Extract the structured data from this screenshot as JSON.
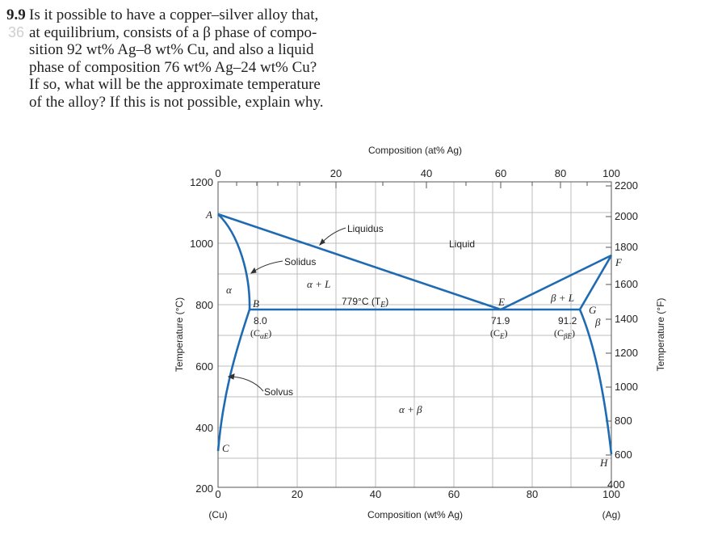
{
  "problem": {
    "number": "9.9",
    "ghost_text": "36",
    "lines": [
      "Is it possible to have a copper–silver alloy that,",
      "at equilibrium, consists of a β phase of compo-",
      "sition 92 wt% Ag–8 wt% Cu, and also a liquid",
      "phase of composition 76 wt% Ag–24 wt% Cu?",
      "If so, what will be the approximate temperature",
      "of the alloy? If this is not possible, explain why."
    ]
  },
  "diagram": {
    "top_axis_title": "Composition (at% Ag)",
    "bottom_axis_title": "Composition (wt% Ag)",
    "left_axis_title": "Temperature (°C)",
    "right_axis_title": "Temperature (°F)",
    "cu_label": "(Cu)",
    "ag_label": "(Ag)",
    "top_ticks": [
      "0",
      "20",
      "40",
      "60",
      "80",
      "100"
    ],
    "bottom_ticks": [
      "0",
      "20",
      "40",
      "60",
      "80",
      "100"
    ],
    "left_ticks": [
      "1200",
      "1000",
      "800",
      "600",
      "400",
      "200"
    ],
    "right_ticks": [
      "2200",
      "2000",
      "1800",
      "1600",
      "1400",
      "1200",
      "1000",
      "800",
      "600",
      "400"
    ],
    "labels": {
      "liquidus": "Liquidus",
      "solidus": "Solidus",
      "solvus": "Solvus",
      "liquid": "Liquid",
      "alpha": "α",
      "beta": "β",
      "alpha_plus_l": "α + L",
      "beta_plus_l": "β + L",
      "alpha_plus_beta": "α + β",
      "eutectic_temp": "779°C (T",
      "eutectic_temp_sub": "E",
      "eutectic_temp_close": ")",
      "point_a": "A",
      "point_b": "B",
      "point_c": "C",
      "point_e": "E",
      "point_f": "F",
      "point_g": "G",
      "point_h": "H",
      "b_comp": "8.0",
      "b_comp_sym": "(C",
      "b_comp_sub": "αE",
      "b_comp_close": ")",
      "e_comp": "71.9",
      "e_comp_sym": "(C",
      "e_comp_sub": "E",
      "e_comp_close": ")",
      "g_comp": "91.2",
      "g_comp_sym": "(C",
      "g_comp_sub": "βE",
      "g_comp_close": ")"
    },
    "line_color": "#1f6bb3",
    "grid_color": "#bdbdbd"
  }
}
